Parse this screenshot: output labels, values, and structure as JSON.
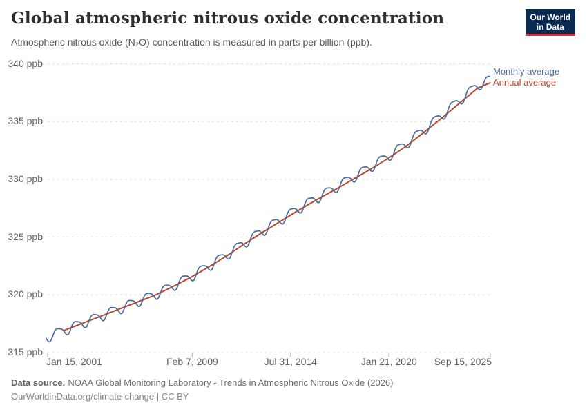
{
  "header": {
    "title": "Global atmospheric nitrous oxide concentration",
    "subtitle": "Atmospheric nitrous oxide (N₂O) concentration is measured in parts per billion (ppb).",
    "logo": {
      "line1": "Our World",
      "line2": "in Data"
    }
  },
  "chart_data": {
    "type": "line",
    "title": "Global atmospheric nitrous oxide concentration",
    "unit": "ppb",
    "ylabel": "parts per billion (ppb)",
    "ylim": [
      315,
      340
    ],
    "xlim_years": [
      2000.96,
      2025.7
    ],
    "grid": "dashed-horizontal",
    "legend_position": "right-of-line-ends",
    "y_ticks": [
      {
        "value": 340,
        "label": "340 ppb"
      },
      {
        "value": 335,
        "label": "335 ppb"
      },
      {
        "value": 330,
        "label": "330 ppb"
      },
      {
        "value": 325,
        "label": "325 ppb"
      },
      {
        "value": 320,
        "label": "320 ppb"
      },
      {
        "value": 315,
        "label": "315 ppb"
      }
    ],
    "x_ticks": [
      {
        "year": 2001.04,
        "label": "Jan 15, 2001"
      },
      {
        "year": 2009.1,
        "label": "Feb 7, 2009"
      },
      {
        "year": 2014.58,
        "label": "Jul 31, 2014"
      },
      {
        "year": 2020.06,
        "label": "Jan 21, 2020"
      },
      {
        "year": 2025.71,
        "label": "Sep 15, 2025"
      }
    ],
    "series": [
      {
        "name": "Monthly average",
        "color": "#4C6A9C",
        "kind": "monthly",
        "stroke_width": 1.7
      },
      {
        "name": "Annual average",
        "color": "#B5492B",
        "kind": "annual",
        "stroke_width": 2
      }
    ],
    "annual": {
      "years": [
        2001,
        2002,
        2003,
        2004,
        2005,
        2006,
        2007,
        2008,
        2009,
        2010,
        2011,
        2012,
        2013,
        2014,
        2015,
        2016,
        2017,
        2018,
        2019,
        2020,
        2021,
        2022,
        2023,
        2024,
        2025,
        2025.7
      ],
      "values": [
        316.35,
        316.95,
        317.55,
        318.15,
        318.75,
        319.35,
        319.95,
        320.7,
        321.5,
        322.4,
        323.35,
        324.4,
        325.4,
        326.35,
        327.3,
        328.2,
        329.05,
        329.95,
        330.85,
        331.8,
        332.85,
        334.05,
        335.3,
        336.6,
        337.9,
        338.35
      ]
    },
    "annual_plot_start_year": 2001.9,
    "monthly_model": {
      "start": 2000.96,
      "end": 2025.7,
      "step": 0.041667,
      "seasonal_amplitude": 0.42,
      "seasonal_phase": 0.38,
      "harmonic_amplitude": 0.1,
      "harmonic_phase": 2.5,
      "trend_offset_end": 0.28
    },
    "grid_color": "#d9d9d9",
    "tick_color": "#b0b0b0"
  },
  "footer": {
    "source_label": "Data source:",
    "source_text": "NOAA Global Monitoring Laboratory - Trends in Atmospheric Nitrous Oxide (2026)",
    "license_line": "OurWorldinData.org/climate-change | CC BY"
  }
}
